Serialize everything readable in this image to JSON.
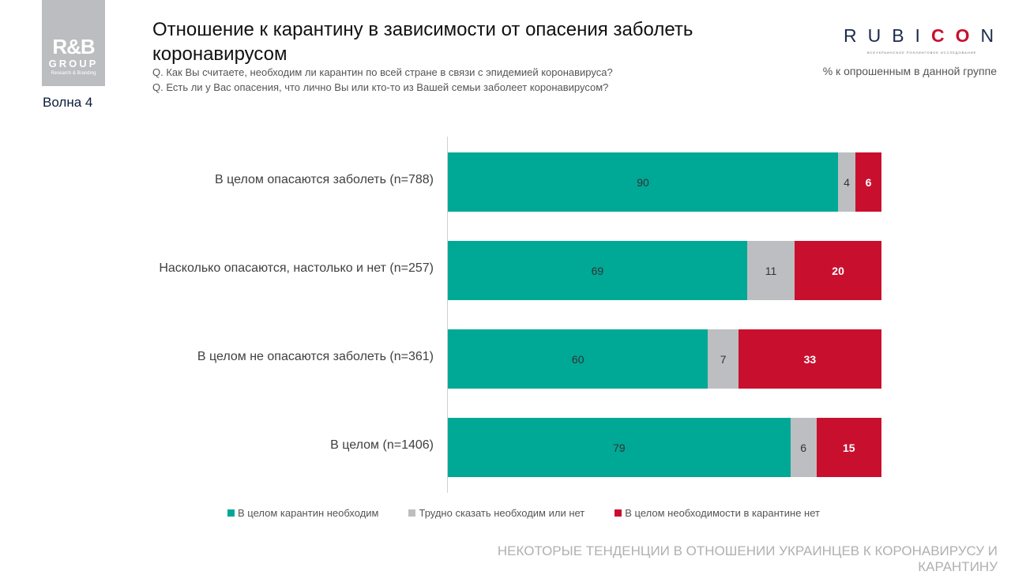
{
  "logo": {
    "text": "R&B GROUP Research & Branding"
  },
  "wave": "Волна 4",
  "title": "Отношение к карантину в зависимости от опасения заболеть коронавирусом",
  "questions": [
    "Q. Как Вы считаете, необходим ли карантин по всей стране в связи с эпидемией коронавируса?",
    "Q. Есть ли у Вас опасения, что лично Вы или кто-то из Вашей семьи заболеет коронавирусом?"
  ],
  "brand": {
    "name": "RUBICON",
    "subtitle": "ВСЕУКРАИНСКОЕ РОЛЛИНГОВОЕ ИССЛЕДОВАНИЕ"
  },
  "note": "% к опрошенным в данной группе",
  "footer": "НЕКОТОРЫЕ ТЕНДЕНЦИИ В ОТНОШЕНИИ УКРАИНЦЕВ К КОРОНАВИРУСУ И КАРАНТИНУ",
  "chart_data": {
    "type": "bar",
    "orientation": "horizontal",
    "stacked": true,
    "xlim": [
      0,
      100
    ],
    "legend": "bottom",
    "categories": [
      "В целом опасаются заболеть (n=788)",
      "Насколько опасаются, настолько и нет (n=257)",
      "В целом не опасаются заболеть (n=361)",
      "В целом (n=1406)"
    ],
    "series": [
      {
        "name": "В целом карантин необходим",
        "color": "#00a896",
        "values": [
          90,
          69,
          60,
          79
        ]
      },
      {
        "name": "Трудно сказать необходим или нет",
        "color": "#bdbec1",
        "values": [
          4,
          11,
          7,
          6
        ]
      },
      {
        "name": "В целом необходимости в карантине нет",
        "color": "#c8102e",
        "values": [
          6,
          20,
          33,
          15
        ]
      }
    ]
  }
}
